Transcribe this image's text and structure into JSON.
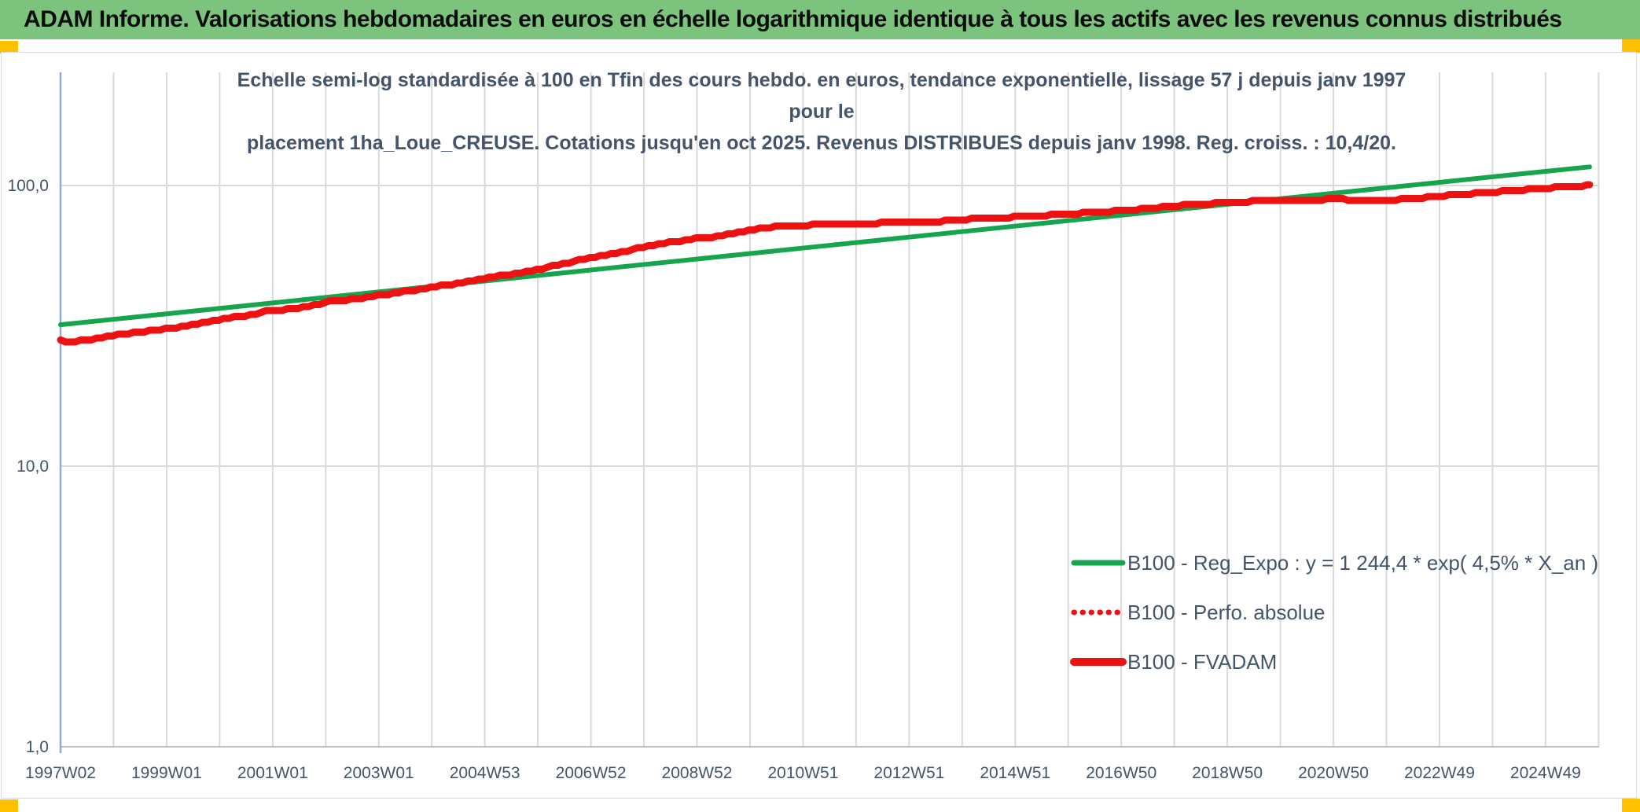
{
  "header": {
    "title": "ADAM Informe. Valorisations hebdomadaires en euros en échelle logarithmique identique à tous les actifs avec les revenus connus distribués",
    "bg_color": "#7CC47D",
    "accent_color": "#FFC000"
  },
  "chart_data": {
    "type": "line",
    "title_line1": "Echelle semi-log standardisée à 100 en Tfin des cours hebdo. en euros, tendance exponentielle, lissage 57 j depuis janv 1997 pour le",
    "title_line2": "placement 1ha_Loue_CREUSE. Cotations jusqu'en oct 2025. Revenus DISTRIBUES depuis janv 1998. Reg. croiss. : 10,4/20.",
    "y_scale": "log10",
    "y_ticks": [
      {
        "label": "100,0",
        "value": 100
      },
      {
        "label": "10,0",
        "value": 10
      },
      {
        "label": "1,0",
        "value": 1
      }
    ],
    "x_ticks": [
      "1997W02",
      "1999W01",
      "2001W01",
      "2003W01",
      "2004W53",
      "2006W52",
      "2008W52",
      "2010W51",
      "2012W51",
      "2014W51",
      "2016W50",
      "2018W50",
      "2020W50",
      "2022W49",
      "2024W49"
    ],
    "x_tick_start_year": 1997.02,
    "x_tick_step_years": 2,
    "x_range": [
      1997.02,
      2025.85
    ],
    "ylim": [
      1,
      250
    ],
    "grid": {
      "vertical_every_years": 1,
      "color": "#D9D9D9",
      "h_values": [
        100,
        10
      ]
    },
    "axis_color": "#8EA9DB",
    "text_color": "#44546A",
    "legend_position": "inside-right-lower",
    "series": [
      {
        "name": "B100 - Reg_Expo : y = 1 244,4 * exp( 4,5% *  X_an )",
        "color": "#17A44E",
        "style": "solid",
        "width": 6,
        "points": [
          [
            1997.02,
            31.9
          ],
          [
            1999,
            34.85
          ],
          [
            2001,
            38.13
          ],
          [
            2003,
            41.72
          ],
          [
            2005,
            45.65
          ],
          [
            2007,
            49.95
          ],
          [
            2009,
            54.65
          ],
          [
            2011,
            59.79
          ],
          [
            2013,
            65.42
          ],
          [
            2015,
            71.58
          ],
          [
            2017,
            78.31
          ],
          [
            2019,
            85.68
          ],
          [
            2021,
            93.75
          ],
          [
            2023,
            102.57
          ],
          [
            2025,
            112.22
          ],
          [
            2025.85,
            116.5
          ]
        ]
      },
      {
        "name": "B100 - Perfo. absolue",
        "color": "#EE1111",
        "style": "dotted",
        "width": 6,
        "points_ref": 2
      },
      {
        "name": "B100 - FVADAM",
        "color": "#EE1111",
        "style": "solid",
        "width": 9,
        "weekly_steps": true,
        "points": [
          [
            1997.02,
            28.0
          ],
          [
            1997.3,
            27.8
          ],
          [
            1997.7,
            28.4
          ],
          [
            1998.0,
            29.2
          ],
          [
            1998.5,
            30.0
          ],
          [
            1999.0,
            30.8
          ],
          [
            1999.5,
            31.9
          ],
          [
            2000.0,
            33.2
          ],
          [
            2000.5,
            34.4
          ],
          [
            2001.0,
            35.9
          ],
          [
            2001.4,
            36.4
          ],
          [
            2001.8,
            37.4
          ],
          [
            2002.1,
            38.8
          ],
          [
            2002.5,
            39.3
          ],
          [
            2003.0,
            40.6
          ],
          [
            2003.5,
            41.8
          ],
          [
            2004.0,
            43.4
          ],
          [
            2004.5,
            44.7
          ],
          [
            2005.0,
            46.6
          ],
          [
            2005.5,
            48.2
          ],
          [
            2006.0,
            50.2
          ],
          [
            2006.5,
            52.5
          ],
          [
            2007.0,
            55.2
          ],
          [
            2007.5,
            57.6
          ],
          [
            2008.0,
            60.2
          ],
          [
            2008.5,
            62.6
          ],
          [
            2009.0,
            64.6
          ],
          [
            2009.5,
            66.2
          ],
          [
            2010.0,
            69.2
          ],
          [
            2010.5,
            71.6
          ],
          [
            2011.0,
            72.2
          ],
          [
            2011.5,
            72.6
          ],
          [
            2012.0,
            72.9
          ],
          [
            2012.5,
            73.5
          ],
          [
            2013.0,
            73.9
          ],
          [
            2013.5,
            74.3
          ],
          [
            2014.0,
            75.6
          ],
          [
            2014.5,
            76.4
          ],
          [
            2015.0,
            77.3
          ],
          [
            2015.5,
            78.1
          ],
          [
            2016.0,
            79.1
          ],
          [
            2016.5,
            80.1
          ],
          [
            2017.0,
            81.4
          ],
          [
            2017.5,
            82.8
          ],
          [
            2018.0,
            84.4
          ],
          [
            2018.5,
            85.9
          ],
          [
            2019.0,
            86.9
          ],
          [
            2019.5,
            87.9
          ],
          [
            2020.0,
            88.4
          ],
          [
            2020.5,
            88.7
          ],
          [
            2021.0,
            89.4
          ],
          [
            2021.5,
            88.9
          ],
          [
            2022.0,
            88.7
          ],
          [
            2022.5,
            89.6
          ],
          [
            2023.0,
            91.6
          ],
          [
            2023.5,
            93.2
          ],
          [
            2024.0,
            94.7
          ],
          [
            2024.5,
            96.2
          ],
          [
            2025.0,
            97.8
          ],
          [
            2025.5,
            99.2
          ],
          [
            2025.85,
            100.0
          ]
        ]
      }
    ]
  }
}
